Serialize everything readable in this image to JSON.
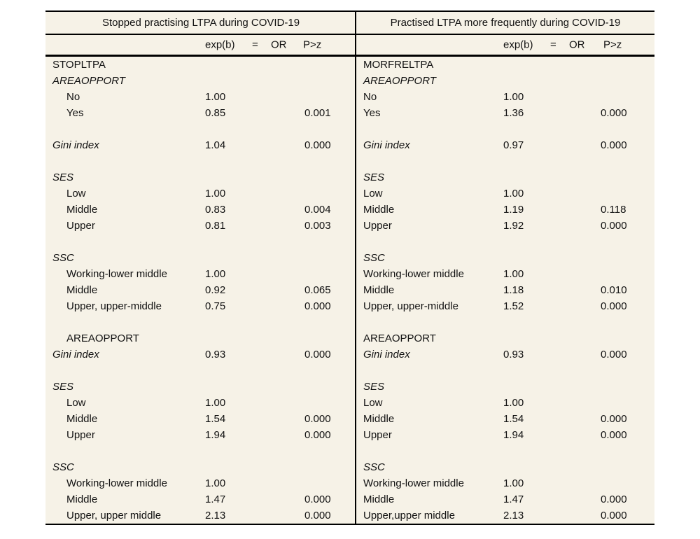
{
  "page": {
    "background": "#ffffff"
  },
  "table": {
    "background_color": "#f6f2e7",
    "line_color": "#000000",
    "groups": [
      {
        "title": "Stopped practising LTPA during COVID-19",
        "col_headers": {
          "exp": "exp(b)",
          "eq": "=",
          "or": "OR",
          "p": "P>z"
        }
      },
      {
        "title": "Practised LTPA more frequently during COVID-19",
        "col_headers": {
          "exp": "exp(b)",
          "eq": "=",
          "or": "OR",
          "p": "P>z"
        }
      }
    ],
    "rows": [
      {
        "left": {
          "label": "STOPLTPA",
          "italic": false,
          "indent": 0,
          "exp": "",
          "p": ""
        },
        "right": {
          "label": "MORFRELTPA",
          "italic": false,
          "indent": 0,
          "exp": "",
          "p": ""
        }
      },
      {
        "left": {
          "label": "AREAOPPORT",
          "italic": true,
          "indent": 0,
          "exp": "",
          "p": ""
        },
        "right": {
          "label": "AREAOPPORT",
          "italic": true,
          "indent": 0,
          "exp": "",
          "p": ""
        }
      },
      {
        "left": {
          "label": "No",
          "italic": false,
          "indent": 1,
          "exp": "1.00",
          "p": ""
        },
        "right": {
          "label": "No",
          "italic": false,
          "indent": 0,
          "exp": "1.00",
          "p": ""
        }
      },
      {
        "left": {
          "label": "Yes",
          "italic": false,
          "indent": 1,
          "exp": "0.85",
          "p": "0.001"
        },
        "right": {
          "label": "Yes",
          "italic": false,
          "indent": 0,
          "exp": "1.36",
          "p": "0.000"
        }
      },
      {
        "left": {
          "label": ""
        },
        "right": {
          "label": ""
        }
      },
      {
        "left": {
          "label": "Gini index",
          "italic": true,
          "indent": 0,
          "exp": "1.04",
          "p": "0.000"
        },
        "right": {
          "label": "Gini index",
          "italic": true,
          "indent": 0,
          "exp": "0.97",
          "p": "0.000"
        }
      },
      {
        "left": {
          "label": ""
        },
        "right": {
          "label": ""
        }
      },
      {
        "left": {
          "label": "SES",
          "italic": true,
          "indent": 0,
          "exp": "",
          "p": ""
        },
        "right": {
          "label": "SES",
          "italic": true,
          "indent": 0,
          "exp": "",
          "p": ""
        }
      },
      {
        "left": {
          "label": "Low",
          "italic": false,
          "indent": 1,
          "exp": "1.00",
          "p": ""
        },
        "right": {
          "label": "Low",
          "italic": false,
          "indent": 0,
          "exp": "1.00",
          "p": ""
        }
      },
      {
        "left": {
          "label": "Middle",
          "italic": false,
          "indent": 1,
          "exp": "0.83",
          "p": "0.004"
        },
        "right": {
          "label": "Middle",
          "italic": false,
          "indent": 0,
          "exp": "1.19",
          "p": "0.118"
        }
      },
      {
        "left": {
          "label": "Upper",
          "italic": false,
          "indent": 1,
          "exp": "0.81",
          "p": "0.003"
        },
        "right": {
          "label": "Upper",
          "italic": false,
          "indent": 0,
          "exp": "1.92",
          "p": "0.000"
        }
      },
      {
        "left": {
          "label": ""
        },
        "right": {
          "label": ""
        }
      },
      {
        "left": {
          "label": "SSC",
          "italic": true,
          "indent": 0,
          "exp": "",
          "p": ""
        },
        "right": {
          "label": "SSC",
          "italic": true,
          "indent": 0,
          "exp": "",
          "p": ""
        }
      },
      {
        "left": {
          "label": "Working-lower middle",
          "italic": false,
          "indent": 1,
          "exp": "1.00",
          "p": ""
        },
        "right": {
          "label": "Working-lower middle",
          "italic": false,
          "indent": 0,
          "exp": "1.00",
          "p": ""
        }
      },
      {
        "left": {
          "label": "Middle",
          "italic": false,
          "indent": 1,
          "exp": "0.92",
          "p": "0.065"
        },
        "right": {
          "label": "Middle",
          "italic": false,
          "indent": 0,
          "exp": "1.18",
          "p": "0.010"
        }
      },
      {
        "left": {
          "label": "Upper, upper-middle",
          "italic": false,
          "indent": 1,
          "exp": "0.75",
          "p": "0.000"
        },
        "right": {
          "label": "Upper, upper-middle",
          "italic": false,
          "indent": 0,
          "exp": "1.52",
          "p": "0.000"
        }
      },
      {
        "left": {
          "label": ""
        },
        "right": {
          "label": ""
        }
      },
      {
        "left": {
          "label": "AREAOPPORT",
          "italic": false,
          "indent": 1,
          "exp": "",
          "p": ""
        },
        "right": {
          "label": "AREAOPPORT",
          "italic": false,
          "indent": 0,
          "exp": "",
          "p": ""
        }
      },
      {
        "left": {
          "label": "Gini index",
          "italic": true,
          "indent": 0,
          "exp": "0.93",
          "p": "0.000"
        },
        "right": {
          "label": "Gini index",
          "italic": true,
          "indent": 0,
          "exp": "0.93",
          "p": "0.000"
        }
      },
      {
        "left": {
          "label": ""
        },
        "right": {
          "label": ""
        }
      },
      {
        "left": {
          "label": "SES",
          "italic": true,
          "indent": 0,
          "exp": "",
          "p": ""
        },
        "right": {
          "label": "SES",
          "italic": true,
          "indent": 0,
          "exp": "",
          "p": ""
        }
      },
      {
        "left": {
          "label": "Low",
          "italic": false,
          "indent": 1,
          "exp": "1.00",
          "p": ""
        },
        "right": {
          "label": "Low",
          "italic": false,
          "indent": 0,
          "exp": "1.00",
          "p": ""
        }
      },
      {
        "left": {
          "label": "Middle",
          "italic": false,
          "indent": 1,
          "exp": "1.54",
          "p": "0.000"
        },
        "right": {
          "label": "Middle",
          "italic": false,
          "indent": 0,
          "exp": "1.54",
          "p": "0.000"
        }
      },
      {
        "left": {
          "label": "Upper",
          "italic": false,
          "indent": 1,
          "exp": "1.94",
          "p": "0.000"
        },
        "right": {
          "label": "Upper",
          "italic": false,
          "indent": 0,
          "exp": "1.94",
          "p": "0.000"
        }
      },
      {
        "left": {
          "label": ""
        },
        "right": {
          "label": ""
        }
      },
      {
        "left": {
          "label": "SSC",
          "italic": true,
          "indent": 0,
          "exp": "",
          "p": ""
        },
        "right": {
          "label": "SSC",
          "italic": true,
          "indent": 0,
          "exp": "",
          "p": ""
        }
      },
      {
        "left": {
          "label": "Working-lower middle",
          "italic": false,
          "indent": 1,
          "exp": "1.00",
          "p": ""
        },
        "right": {
          "label": "Working-lower middle",
          "italic": false,
          "indent": 0,
          "exp": "1.00",
          "p": ""
        }
      },
      {
        "left": {
          "label": "Middle",
          "italic": false,
          "indent": 1,
          "exp": "1.47",
          "p": "0.000"
        },
        "right": {
          "label": "Middle",
          "italic": false,
          "indent": 0,
          "exp": "1.47",
          "p": "0.000"
        }
      },
      {
        "left": {
          "label": "Upper, upper middle",
          "italic": false,
          "indent": 1,
          "exp": "2.13",
          "p": "0.000"
        },
        "right": {
          "label": "Upper,upper middle",
          "italic": false,
          "indent": 0,
          "exp": "2.13",
          "p": "0.000"
        }
      }
    ]
  }
}
